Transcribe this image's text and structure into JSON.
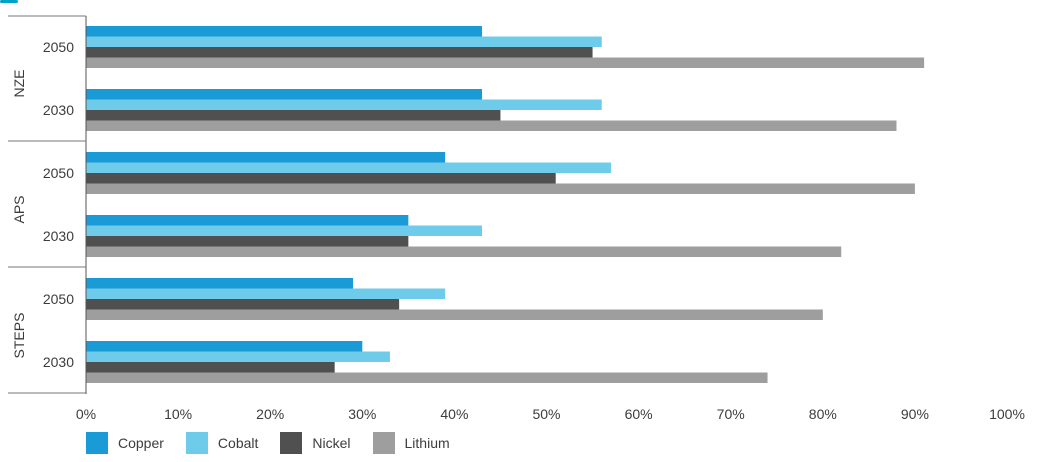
{
  "chart_data": {
    "type": "bar",
    "orientation": "horizontal",
    "groups": [
      {
        "name": "NZE",
        "categories": [
          "2050",
          "2030"
        ]
      },
      {
        "name": "APS",
        "categories": [
          "2050",
          "2030"
        ]
      },
      {
        "name": "STEPS",
        "categories": [
          "2050",
          "2030"
        ]
      }
    ],
    "rows": [
      "NZE 2050",
      "NZE 2030",
      "APS 2050",
      "APS 2030",
      "STEPS 2050",
      "STEPS 2030"
    ],
    "series": [
      {
        "name": "Copper",
        "color": "#1a9ad6",
        "values": [
          43,
          43,
          39,
          35,
          29,
          30
        ]
      },
      {
        "name": "Cobalt",
        "color": "#6fcbea",
        "values": [
          56,
          56,
          57,
          43,
          39,
          33
        ]
      },
      {
        "name": "Nickel",
        "color": "#505050",
        "values": [
          55,
          45,
          51,
          35,
          34,
          27
        ]
      },
      {
        "name": "Lithium",
        "color": "#9e9e9e",
        "values": [
          91,
          88,
          90,
          82,
          80,
          74
        ]
      }
    ],
    "xlim": [
      0,
      100
    ],
    "x_ticks": [
      "0%",
      "10%",
      "20%",
      "30%",
      "40%",
      "50%",
      "60%",
      "70%",
      "80%",
      "90%",
      "100%"
    ],
    "grid": false,
    "legend_position": "bottom-left"
  }
}
